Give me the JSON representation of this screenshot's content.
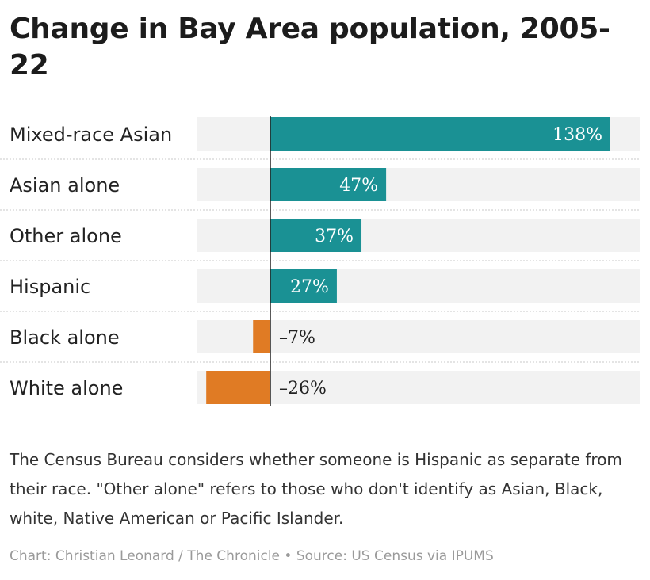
{
  "chart_data": {
    "type": "bar",
    "orientation": "horizontal",
    "title": "Change in Bay Area population, 2005-22",
    "categories": [
      "Mixed-race Asian",
      "Asian alone",
      "Other alone",
      "Hispanic",
      "Black alone",
      "White alone"
    ],
    "values": [
      138,
      47,
      37,
      27,
      -7,
      -26
    ],
    "value_labels": [
      "138%",
      "47%",
      "37%",
      "27%",
      "–7%",
      "–26%"
    ],
    "xlim": [
      -30,
      150
    ],
    "colors": {
      "positive": "#1a9194",
      "negative": "#e07b24",
      "track": "#f2f2f2",
      "axis": "#222222"
    }
  },
  "note": "The Census Bureau considers whether someone is Hispanic as separate from their race. \"Other alone\" refers to those who don't identify as Asian, Black, white, Native American or Pacific Islander.",
  "credit": "Chart: Christian Leonard / The Chronicle • Source: US Census via IPUMS"
}
